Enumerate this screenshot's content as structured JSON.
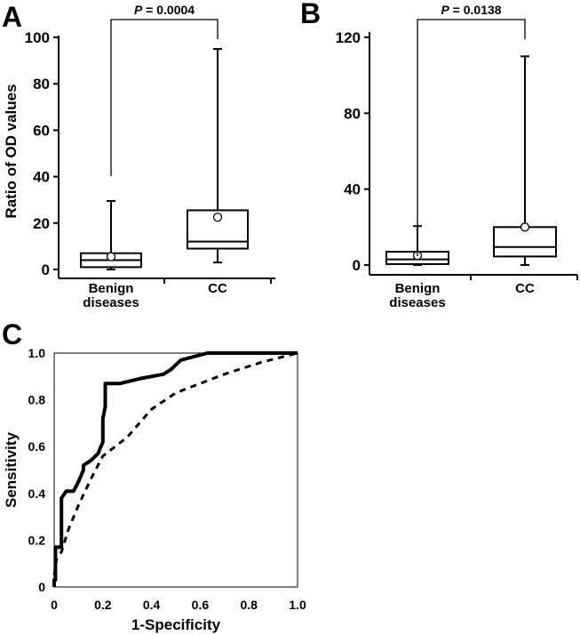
{
  "chart_data": [
    {
      "panel": "A",
      "type": "box",
      "ylabel": "Ratio of OD values",
      "ylim": [
        0,
        100
      ],
      "yticks": [
        "0",
        "20",
        "40",
        "60",
        "80",
        "100"
      ],
      "categories": [
        "Benign\ndiseases",
        "CC"
      ],
      "category_lines": [
        [
          "Benign",
          "diseases"
        ],
        [
          "CC"
        ]
      ],
      "boxes": [
        {
          "category": "Benign diseases",
          "min": 0,
          "q1": 1,
          "median": 4,
          "q3": 7,
          "max": 29.5,
          "mean": 5.5
        },
        {
          "category": "CC",
          "min": 3,
          "q1": 9,
          "median": 12,
          "q3": 25.5,
          "max": 95,
          "mean": 22.5
        }
      ],
      "significance": {
        "p_label": "P",
        "p_value": " = 0.0004"
      }
    },
    {
      "panel": "B",
      "type": "box",
      "ylabel": "",
      "ylim": [
        0,
        120
      ],
      "yticks": [
        "0",
        "40",
        "80",
        "120"
      ],
      "categories": [
        "Benign\ndiseases",
        "CC"
      ],
      "category_lines": [
        [
          "Benign",
          "diseases"
        ],
        [
          "CC"
        ]
      ],
      "boxes": [
        {
          "category": "Benign diseases",
          "min": 0,
          "q1": 0.5,
          "median": 3,
          "q3": 7,
          "max": 20.5,
          "mean": 5
        },
        {
          "category": "CC",
          "min": 0,
          "q1": 4.5,
          "median": 9.5,
          "q3": 20,
          "max": 110,
          "mean": 20
        }
      ],
      "significance": {
        "p_label": "P",
        "p_value": " = 0.0138"
      }
    },
    {
      "panel": "C",
      "type": "line",
      "xlabel": "1-Specificity",
      "ylabel": "Sensitivity",
      "xlim": [
        0,
        1
      ],
      "ylim": [
        0,
        1
      ],
      "xticks": [
        "0",
        "0.2",
        "0.4",
        "0.6",
        "0.8",
        "1.0"
      ],
      "yticks": [
        "0",
        "0.2",
        "0.4",
        "0.6",
        "0.8",
        "1.0"
      ],
      "series": [
        {
          "style": "solid",
          "x": [
            0,
            0,
            0.005,
            0.005,
            0.03,
            0.03,
            0.05,
            0.08,
            0.1,
            0.12,
            0.12,
            0.15,
            0.17,
            0.18,
            0.2,
            0.2,
            0.21,
            0.21,
            0.27,
            0.35,
            0.45,
            0.48,
            0.52,
            0.63,
            1.0
          ],
          "y": [
            0,
            0.03,
            0.03,
            0.17,
            0.17,
            0.38,
            0.41,
            0.41,
            0.45,
            0.5,
            0.52,
            0.54,
            0.56,
            0.57,
            0.62,
            0.72,
            0.77,
            0.87,
            0.87,
            0.89,
            0.91,
            0.93,
            0.97,
            1.0,
            1.0
          ]
        },
        {
          "style": "dashed",
          "x": [
            0,
            0.01,
            0.03,
            0.06,
            0.1,
            0.15,
            0.2,
            0.25,
            0.3,
            0.35,
            0.4,
            0.5,
            0.6,
            0.7,
            0.85,
            1.0
          ],
          "y": [
            0.05,
            0.12,
            0.15,
            0.25,
            0.35,
            0.46,
            0.56,
            0.6,
            0.64,
            0.7,
            0.76,
            0.83,
            0.87,
            0.91,
            0.96,
            1.0
          ]
        }
      ]
    }
  ],
  "panels": {
    "a": "A",
    "b": "B",
    "c": "C"
  }
}
